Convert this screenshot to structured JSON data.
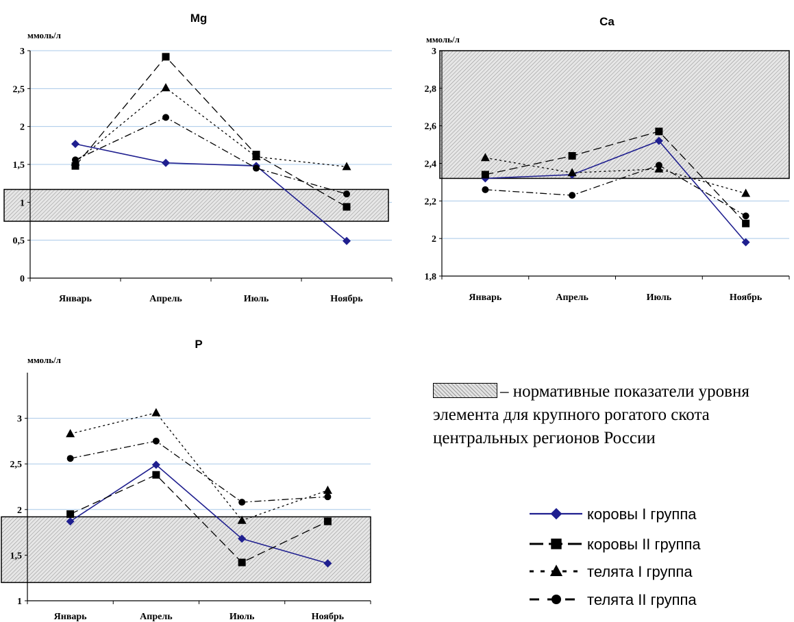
{
  "norm_note": "– нормативные показатели уровня элемента для крупного рогатого скота центральных регионов России",
  "legend": [
    {
      "label": "коровы I группа",
      "color": "#1f1f8f",
      "dash": "solid",
      "marker": "diamond"
    },
    {
      "label": "коровы II группа",
      "color": "#000000",
      "dash": "longdash",
      "marker": "square"
    },
    {
      "label": "телята I группа",
      "color": "#000000",
      "dash": "dotted",
      "marker": "triangle"
    },
    {
      "label": "телята II группа",
      "color": "#000000",
      "dash": "dashdot",
      "marker": "circle"
    }
  ],
  "chart_data": [
    {
      "type": "line",
      "title": "Mg",
      "ylabel": "ммоль/л",
      "categories": [
        "Январь",
        "Апрель",
        "Июль",
        "Ноябрь"
      ],
      "ylim": [
        0,
        3
      ],
      "yticks": [
        0,
        0.5,
        1,
        1.5,
        2,
        2.5,
        3
      ],
      "ytick_labels": [
        "0",
        "0,5",
        "1",
        "1,5",
        "2",
        "2,5",
        "3"
      ],
      "norm_band": [
        0.75,
        1.17
      ],
      "grid": true,
      "series": [
        {
          "name": "коровы I группа",
          "values": [
            1.77,
            1.52,
            1.48,
            0.49
          ]
        },
        {
          "name": "коровы II группа",
          "values": [
            1.48,
            2.92,
            1.63,
            0.94
          ]
        },
        {
          "name": "телята I группа",
          "values": [
            1.53,
            2.51,
            1.6,
            1.47
          ]
        },
        {
          "name": "телята II группа",
          "values": [
            1.56,
            2.12,
            1.45,
            1.11
          ]
        }
      ]
    },
    {
      "type": "line",
      "title": "Ca",
      "ylabel": "ммоль/л",
      "categories": [
        "Январь",
        "Апрель",
        "Июль",
        "Ноябрь"
      ],
      "ylim": [
        1.8,
        3
      ],
      "yticks": [
        1.8,
        2,
        2.2,
        2.4,
        2.6,
        2.8,
        3
      ],
      "ytick_labels": [
        "1,8",
        "2",
        "2,2",
        "2,4",
        "2,6",
        "2,8",
        "3"
      ],
      "norm_band": [
        2.32,
        3
      ],
      "grid": true,
      "series": [
        {
          "name": "коровы I группа",
          "values": [
            2.32,
            2.34,
            2.52,
            1.98
          ]
        },
        {
          "name": "коровы II группа",
          "values": [
            2.34,
            2.44,
            2.57,
            2.08
          ]
        },
        {
          "name": "телята I группа",
          "values": [
            2.43,
            2.35,
            2.37,
            2.24
          ]
        },
        {
          "name": "телята II группа",
          "values": [
            2.26,
            2.23,
            2.39,
            2.12
          ]
        }
      ]
    },
    {
      "type": "line",
      "title": "P",
      "ylabel": "ммоль/л",
      "categories": [
        "Январь",
        "Апрель",
        "Июль",
        "Ноябрь"
      ],
      "ylim": [
        1,
        3.5
      ],
      "yticks": [
        1,
        1.5,
        2,
        2.5,
        3
      ],
      "ytick_labels": [
        "1",
        "1,5",
        "2",
        "2,5",
        "3"
      ],
      "norm_band": [
        1.2,
        1.92
      ],
      "grid": true,
      "series": [
        {
          "name": "коровы I группа",
          "values": [
            1.87,
            2.49,
            1.68,
            1.41
          ]
        },
        {
          "name": "коровы II группа",
          "values": [
            1.95,
            2.38,
            1.42,
            1.87
          ]
        },
        {
          "name": "телята I группа",
          "values": [
            2.83,
            3.06,
            1.88,
            2.21
          ]
        },
        {
          "name": "телята II группа",
          "values": [
            2.56,
            2.75,
            2.08,
            2.14
          ]
        }
      ]
    }
  ]
}
